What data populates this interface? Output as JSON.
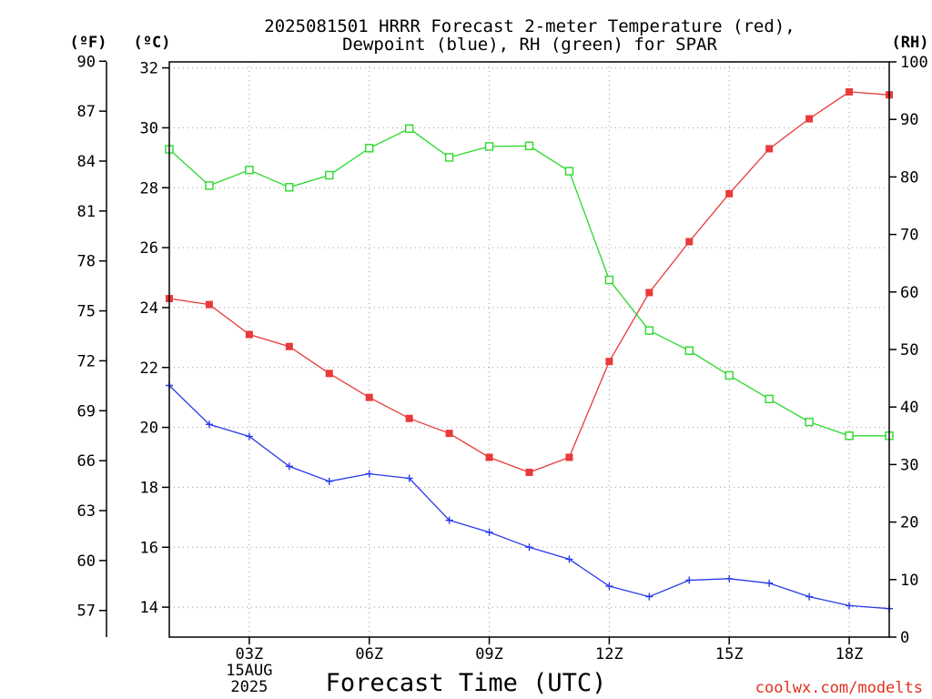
{
  "title_line1": "2025081501 HRRR Forecast 2-meter Temperature (red),",
  "title_line2": "Dewpoint (blue), RH (green) for SPAR",
  "units": {
    "f": "(ºF)",
    "c": "(ºC)",
    "rh": "(RH)"
  },
  "credit": "coolwx.com/modelts",
  "chart_data": {
    "type": "line",
    "title": "2025081501 HRRR Forecast 2-meter Temperature (red), Dewpoint (blue), RH (green) for SPAR",
    "xlabel": "Forecast Time (UTC)",
    "x_hours_utc": [
      1,
      2,
      3,
      4,
      5,
      6,
      7,
      8,
      9,
      10,
      11,
      12,
      13,
      14,
      15,
      16,
      17,
      18,
      19
    ],
    "x_ticks": [
      {
        "hour": 3,
        "label": "03Z",
        "sub": [
          "15AUG",
          "2025"
        ]
      },
      {
        "hour": 6,
        "label": "06Z"
      },
      {
        "hour": 9,
        "label": "09Z"
      },
      {
        "hour": 12,
        "label": "12Z"
      },
      {
        "hour": 15,
        "label": "15Z"
      },
      {
        "hour": 18,
        "label": "18Z"
      }
    ],
    "xlim": [
      1,
      19
    ],
    "y_celsius": {
      "range": [
        13,
        32.2
      ],
      "ticks": [
        14,
        16,
        18,
        20,
        22,
        24,
        26,
        28,
        30,
        32
      ]
    },
    "y_fahrenheit": {
      "range": [
        55.4,
        89.96
      ],
      "ticks": [
        57,
        60,
        63,
        66,
        69,
        72,
        75,
        78,
        81,
        84,
        87,
        90
      ]
    },
    "y_rh": {
      "range": [
        0,
        100
      ],
      "ticks": [
        0,
        10,
        20,
        30,
        40,
        50,
        60,
        70,
        80,
        90,
        100
      ]
    },
    "grid": true,
    "series": [
      {
        "name": "Temperature",
        "units": "C",
        "color": "#e83a3a",
        "marker": "filled-square",
        "axis": "celsius",
        "values": [
          24.3,
          24.1,
          23.1,
          22.7,
          21.8,
          21.0,
          20.3,
          19.8,
          19.0,
          18.5,
          19.0,
          22.2,
          24.5,
          26.2,
          27.8,
          29.3,
          30.3,
          31.2,
          31.1
        ]
      },
      {
        "name": "Dewpoint",
        "units": "C",
        "color": "#2a3ae8",
        "marker": "plus",
        "axis": "celsius",
        "values": [
          21.4,
          20.1,
          19.7,
          18.7,
          18.2,
          18.45,
          18.3,
          16.9,
          16.5,
          16.0,
          15.6,
          14.7,
          14.35,
          14.9,
          14.95,
          14.8,
          14.35,
          14.05,
          13.95
        ]
      },
      {
        "name": "RH",
        "units": "%",
        "color": "#2cd82c",
        "marker": "open-square",
        "axis": "rh",
        "values": [
          84.8,
          78.5,
          81.2,
          78.2,
          80.3,
          85.0,
          88.4,
          83.4,
          85.3,
          85.4,
          81.0,
          62.1,
          53.3,
          49.8,
          45.5,
          41.4,
          37.4,
          35.0,
          35.0
        ]
      }
    ]
  }
}
